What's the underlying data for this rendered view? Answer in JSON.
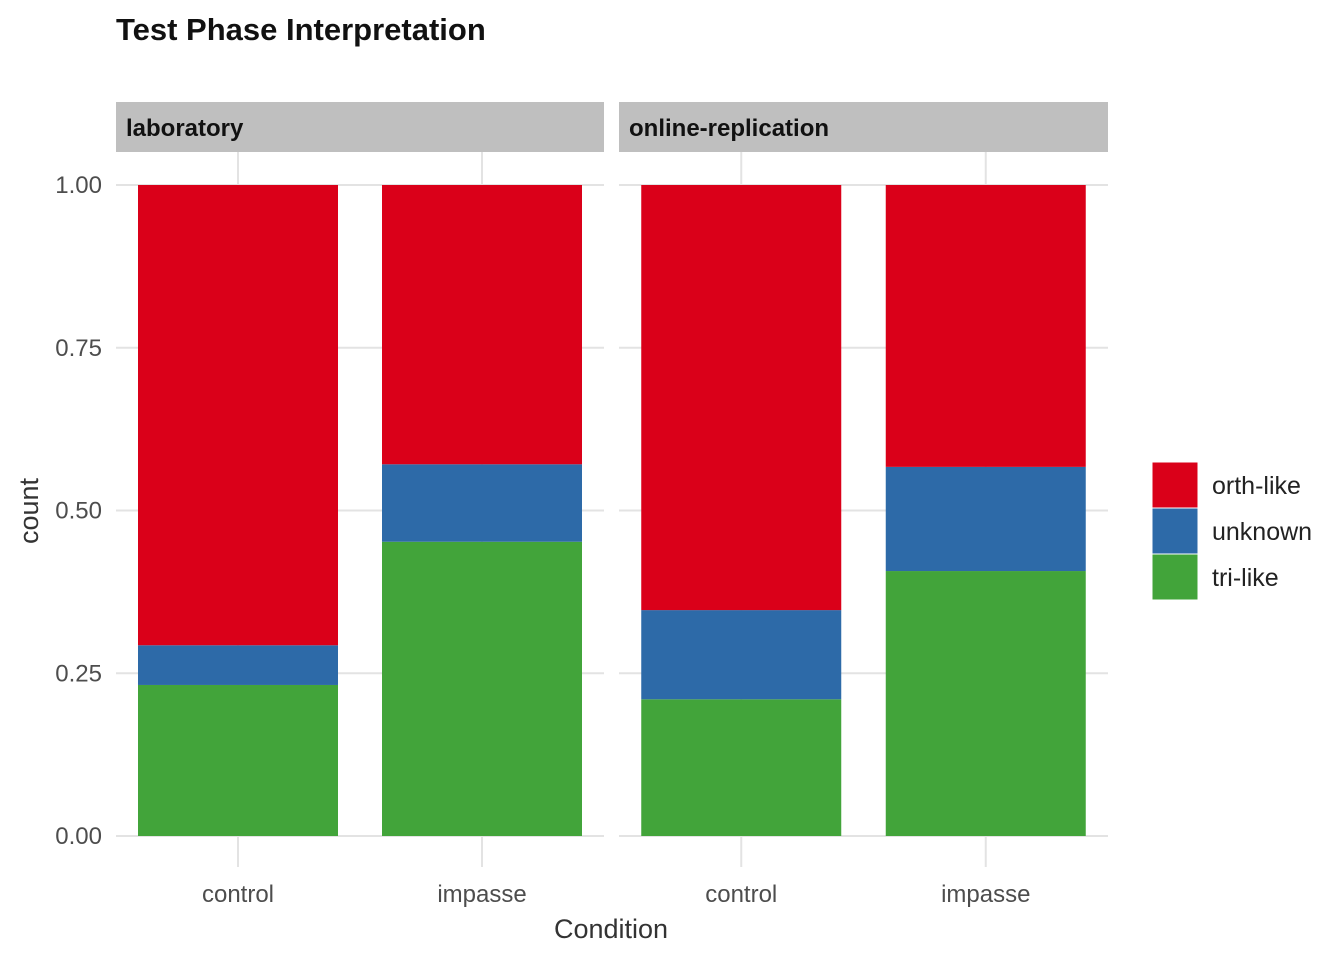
{
  "chart_data": {
    "type": "bar",
    "stacked": true,
    "title": "Test Phase Interpretation",
    "xlabel": "Condition",
    "ylabel": "count",
    "ylim": [
      0,
      1
    ],
    "y_ticks": [
      "0.00",
      "0.25",
      "0.50",
      "0.75",
      "1.00"
    ],
    "y_tick_values": [
      0,
      0.25,
      0.5,
      0.75,
      1.0
    ],
    "categories": [
      "control",
      "impasse"
    ],
    "grid": true,
    "legend_position": "right",
    "stack_order": [
      "tri-like",
      "unknown",
      "orth-like"
    ],
    "legend": [
      {
        "name": "orth-like",
        "color": "#DA0019"
      },
      {
        "name": "unknown",
        "color": "#2D6AA8"
      },
      {
        "name": "tri-like",
        "color": "#42A43A"
      }
    ],
    "facets": [
      {
        "label": "laboratory",
        "series": [
          {
            "name": "tri-like",
            "values": [
              0.232,
              0.452
            ]
          },
          {
            "name": "unknown",
            "values": [
              0.061,
              0.119
            ]
          },
          {
            "name": "orth-like",
            "values": [
              0.707,
              0.429
            ]
          }
        ]
      },
      {
        "label": "online-replication",
        "series": [
          {
            "name": "tri-like",
            "values": [
              0.21,
              0.407
            ]
          },
          {
            "name": "unknown",
            "values": [
              0.137,
              0.16
            ]
          },
          {
            "name": "orth-like",
            "values": [
              0.653,
              0.433
            ]
          }
        ]
      }
    ]
  }
}
